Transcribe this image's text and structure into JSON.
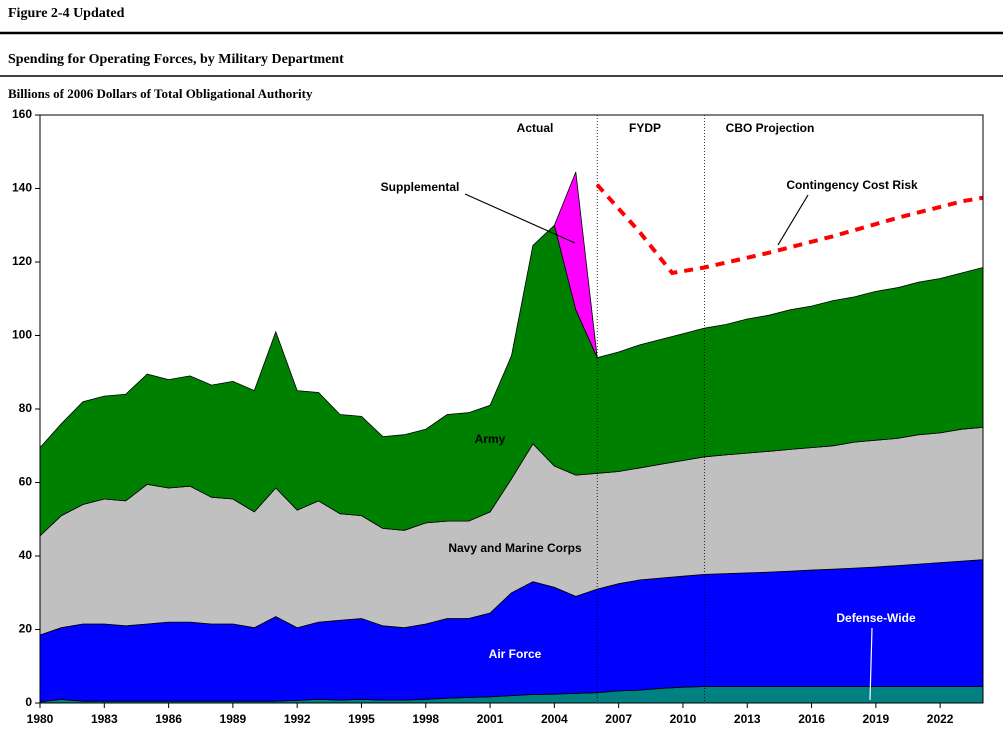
{
  "header": "Figure 2-4 Updated",
  "chart_data": {
    "type": "stacked_area",
    "title": "Spending for Operating Forces, by Military Department",
    "ylabel": "Billions of 2006 Dollars of Total Obligational Authority",
    "x": [
      1980,
      1981,
      1982,
      1983,
      1984,
      1985,
      1986,
      1987,
      1988,
      1989,
      1990,
      1991,
      1992,
      1993,
      1994,
      1995,
      1996,
      1997,
      1998,
      1999,
      2000,
      2001,
      2002,
      2003,
      2004,
      2005,
      2006,
      2007,
      2008,
      2009,
      2010,
      2011,
      2012,
      2013,
      2014,
      2015,
      2016,
      2017,
      2018,
      2019,
      2020,
      2021,
      2022,
      2023,
      2024
    ],
    "xlim": [
      1980,
      2024
    ],
    "xticks": [
      1980,
      1983,
      1986,
      1989,
      1992,
      1995,
      1998,
      2001,
      2004,
      2007,
      2010,
      2013,
      2016,
      2019,
      2022
    ],
    "ylim": [
      0,
      160
    ],
    "yticks": [
      0,
      20,
      40,
      60,
      80,
      100,
      120,
      140,
      160
    ],
    "dividers": [
      2006,
      2011
    ],
    "regions": [
      "Actual",
      "FYDP",
      "CBO Projection"
    ],
    "series": [
      {
        "name": "Defense-Wide",
        "color": "#008080",
        "values": [
          0.3,
          1,
          0.5,
          0.5,
          0.5,
          0.5,
          0.5,
          0.5,
          0.5,
          0.5,
          0.5,
          0.5,
          0.7,
          1,
          0.8,
          1,
          0.8,
          0.8,
          1,
          1.3,
          1.5,
          1.7,
          2,
          2.3,
          2.4,
          2.6,
          2.8,
          3.3,
          3.5,
          4,
          4.3,
          4.5,
          4.5,
          4.5,
          4.5,
          4.5,
          4.5,
          4.5,
          4.5,
          4.5,
          4.5,
          4.5,
          4.5,
          4.5,
          4.5
        ]
      },
      {
        "name": "Air Force",
        "color": "#0000ff",
        "values": [
          18.2,
          19.5,
          21,
          21,
          20.5,
          21,
          21.5,
          21.5,
          21,
          21,
          20,
          23,
          19.8,
          21,
          21.7,
          22,
          20.2,
          19.7,
          20.5,
          21.7,
          21.5,
          22.8,
          28,
          30.7,
          29.1,
          26.4,
          28.2,
          29.2,
          30,
          30,
          30.2,
          30.5,
          30.7,
          30.9,
          31.1,
          31.4,
          31.7,
          31.9,
          32.2,
          32.5,
          32.9,
          33.3,
          33.7,
          34.1,
          34.5
        ]
      },
      {
        "name": "Navy and Marine Corps",
        "color": "#c0c0c0",
        "values": [
          27,
          30.5,
          32.5,
          34,
          34,
          38,
          36.5,
          37,
          34.5,
          34,
          31.5,
          35,
          32,
          33,
          29,
          28,
          26.5,
          26.5,
          27.5,
          26.5,
          26.5,
          27.5,
          31,
          37.5,
          33,
          33,
          31.5,
          30.5,
          30.5,
          31,
          31.5,
          32,
          32.3,
          32.6,
          32.9,
          33.1,
          33.3,
          33.6,
          34.3,
          34.5,
          34.6,
          35.2,
          35.3,
          35.9,
          36
        ]
      },
      {
        "name": "Army",
        "color": "#008000",
        "values": [
          24,
          25,
          28,
          28,
          29,
          30,
          29.5,
          30,
          30.5,
          32,
          33,
          42.5,
          32.5,
          29.5,
          27,
          27,
          25,
          26,
          25.5,
          29,
          29.5,
          29,
          33.5,
          54,
          65.5,
          45,
          31.5,
          32.5,
          33.5,
          34,
          34.5,
          35,
          35.5,
          36.5,
          37,
          38,
          38.5,
          39.5,
          39.5,
          40.5,
          41,
          41.5,
          42,
          42.5,
          43.5
        ]
      },
      {
        "name": "Supplemental",
        "color": "#ff00ff",
        "values": [
          null,
          null,
          null,
          null,
          null,
          null,
          null,
          null,
          null,
          null,
          null,
          null,
          null,
          null,
          null,
          null,
          null,
          null,
          null,
          null,
          null,
          null,
          null,
          null,
          0,
          37.5,
          0,
          null,
          null,
          null,
          null,
          null,
          null,
          null,
          null,
          null,
          null,
          null,
          null,
          null,
          null,
          null,
          null,
          null,
          null
        ]
      }
    ],
    "line": {
      "name": "Contingency Cost Risk",
      "color": "#ff0000",
      "dashed": true,
      "x": [
        2006,
        2008,
        2009.5,
        2011,
        2014,
        2017,
        2020,
        2023,
        2024
      ],
      "values": [
        141,
        128,
        117,
        118.5,
        122.5,
        127,
        132,
        136.5,
        137.5
      ]
    }
  }
}
